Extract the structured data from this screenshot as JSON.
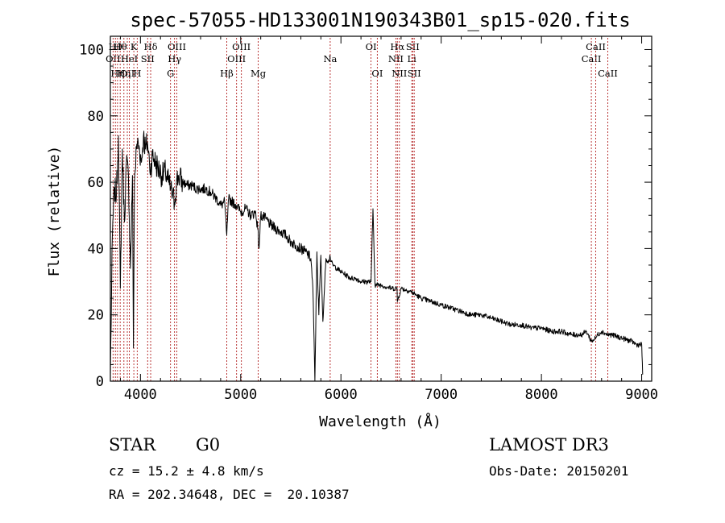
{
  "chart_data": {
    "type": "line",
    "title": "spec-57055-HD133001N190343B01_sp15-020.fits",
    "xlabel": "Wavelength (Å)",
    "ylabel": "Flux (relative)",
    "xlim": [
      3700,
      9100
    ],
    "ylim": [
      0,
      104
    ],
    "xticks": [
      4000,
      5000,
      6000,
      7000,
      8000,
      9000
    ],
    "yticks": [
      0,
      20,
      40,
      60,
      80,
      100
    ],
    "grid": false,
    "series": [
      {
        "name": "spectrum",
        "x": [
          3700,
          3720,
          3740,
          3760,
          3780,
          3800,
          3820,
          3840,
          3860,
          3880,
          3900,
          3920,
          3930,
          3940,
          3960,
          3970,
          3990,
          4010,
          4030,
          4050,
          4070,
          4090,
          4102,
          4120,
          4150,
          4180,
          4220,
          4250,
          4280,
          4300,
          4320,
          4340,
          4360,
          4380,
          4420,
          4470,
          4520,
          4560,
          4600,
          4650,
          4700,
          4760,
          4800,
          4840,
          4861,
          4880,
          4920,
          4960,
          5000,
          5050,
          5100,
          5150,
          5170,
          5183,
          5200,
          5250,
          5300,
          5350,
          5400,
          5450,
          5500,
          5550,
          5600,
          5650,
          5700,
          5720,
          5740,
          5760,
          5780,
          5800,
          5820,
          5850,
          5880,
          5890,
          5900,
          5920,
          5960,
          6000,
          6050,
          6100,
          6150,
          6200,
          6250,
          6300,
          6320,
          6340,
          6370,
          6400,
          6500,
          6560,
          6563,
          6600,
          6700,
          6800,
          6900,
          7000,
          7100,
          7200,
          7300,
          7400,
          7500,
          7600,
          7700,
          7800,
          7900,
          8000,
          8100,
          8200,
          8300,
          8400,
          8450,
          8498,
          8542,
          8560,
          8600,
          8662,
          8700,
          8800,
          8900,
          8950,
          9000,
          9010
        ],
        "values": [
          2,
          44,
          58,
          56,
          74,
          28,
          70,
          48,
          66,
          62,
          34,
          62,
          10,
          60,
          70,
          72,
          70,
          66,
          74,
          70,
          72,
          66,
          64,
          68,
          66,
          64,
          62,
          63,
          60,
          58,
          56,
          54,
          60,
          62,
          60,
          59,
          59,
          58,
          58,
          58,
          57,
          55,
          53,
          54,
          44,
          55,
          54,
          53,
          51,
          52,
          50,
          51,
          46,
          40,
          50,
          49,
          47,
          46,
          45,
          44,
          42,
          41,
          40,
          39,
          37,
          28,
          0,
          39,
          20,
          38,
          18,
          37,
          36,
          38,
          36,
          35,
          34,
          33,
          32,
          31,
          31,
          30,
          30,
          30,
          52,
          29,
          29,
          29,
          28,
          28,
          24,
          28,
          27,
          25,
          24,
          23,
          22,
          21,
          20,
          20,
          19,
          18,
          17,
          17,
          16,
          16,
          15,
          15,
          14,
          14,
          15,
          12,
          13,
          14,
          15,
          14,
          14,
          13,
          12,
          11,
          11,
          2
        ]
      }
    ],
    "line_markers": [
      {
        "wavelength": 3727,
        "label": "OII",
        "row": 2
      },
      {
        "wavelength": 3750,
        "label": "Hθ",
        "row": 1
      },
      {
        "wavelength": 3771,
        "label": "Hη",
        "row": 3
      },
      {
        "wavelength": 3798,
        "label": "Hθ",
        "row": 1
      },
      {
        "wavelength": 3835,
        "label": "Hη",
        "row": 3
      },
      {
        "wavelength": 3869,
        "label": "OII",
        "row": 3
      },
      {
        "wavelength": 3889,
        "label": "HeI",
        "row": 2
      },
      {
        "wavelength": 3934,
        "label": "K",
        "row": 1
      },
      {
        "wavelength": 3968,
        "label": "H",
        "row": 3
      },
      {
        "wavelength": 4072,
        "label": "SII",
        "row": 2
      },
      {
        "wavelength": 4102,
        "label": "Hδ",
        "row": 1
      },
      {
        "wavelength": 4300,
        "label": "G",
        "row": 3
      },
      {
        "wavelength": 4340,
        "label": "Hγ",
        "row": 2
      },
      {
        "wavelength": 4363,
        "label": "OIII",
        "row": 1
      },
      {
        "wavelength": 4861,
        "label": "Hβ",
        "row": 3
      },
      {
        "wavelength": 4959,
        "label": "OIII",
        "row": 2
      },
      {
        "wavelength": 5007,
        "label": "OIII",
        "row": 1
      },
      {
        "wavelength": 5175,
        "label": "Mg",
        "row": 3
      },
      {
        "wavelength": 5893,
        "label": "Na",
        "row": 2
      },
      {
        "wavelength": 6300,
        "label": "OI",
        "row": 1
      },
      {
        "wavelength": 6363,
        "label": "OI",
        "row": 3
      },
      {
        "wavelength": 6548,
        "label": "NII",
        "row": 2
      },
      {
        "wavelength": 6563,
        "label": "Hα",
        "row": 1
      },
      {
        "wavelength": 6583,
        "label": "NII",
        "row": 3
      },
      {
        "wavelength": 6707,
        "label": "Li",
        "row": 2
      },
      {
        "wavelength": 6716,
        "label": "SII",
        "row": 1
      },
      {
        "wavelength": 6731,
        "label": "SII",
        "row": 3
      },
      {
        "wavelength": 8498,
        "label": "CaII",
        "row": 2
      },
      {
        "wavelength": 8542,
        "label": "CaII",
        "row": 1
      },
      {
        "wavelength": 8662,
        "label": "CaII",
        "row": 3
      }
    ]
  },
  "info": {
    "object_class": "STAR",
    "subclass": "G0",
    "survey": "LAMOST DR3",
    "redshift_line": "cz = 15.2 ± 4.8 km/s",
    "obs_date_line": "Obs-Date: 20150201",
    "coords_line": "RA = 202.34648, DEC =  20.10387"
  },
  "colors": {
    "spectrum": "#000000",
    "line_markers": "#b22222",
    "axis": "#000000",
    "background": "#ffffff"
  }
}
